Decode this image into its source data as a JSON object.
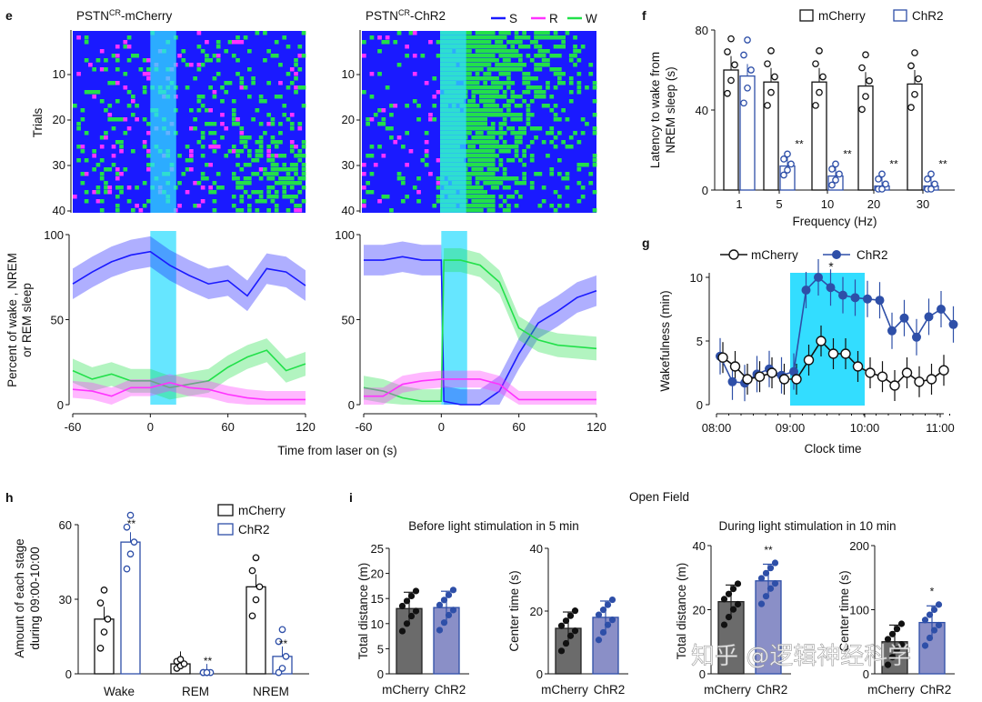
{
  "panels": {
    "e": "e",
    "f": "f",
    "g": "g",
    "h": "h",
    "i": "i"
  },
  "colors": {
    "S": "#1a1aff",
    "R": "#ff33ff",
    "W": "#22e04a",
    "laser": "#33ddff",
    "mCherry": "#111111",
    "ChR2": "#2e4fa8",
    "grayBar": "#6b6b6b",
    "blueBar": "#8a8fc7"
  },
  "e": {
    "left_title_base": "PSTN",
    "left_title_sup": "CR",
    "left_title_rest": "-mCherry",
    "right_title_base": "PSTN",
    "right_title_sup": "CR",
    "right_title_rest": "-ChR2",
    "legend": [
      "S",
      "R",
      "W"
    ],
    "trials_label": "Trials",
    "trial_ticks": [
      "10",
      "20",
      "30",
      "40"
    ],
    "pct_ticks": [
      "100",
      "50",
      "0"
    ],
    "ylabel1": "Percent of wake , NREM",
    "ylabel2": "or REM sleep",
    "x_ticks": [
      "-60",
      "0",
      "60",
      "120"
    ],
    "xlabel": "Time from laser on (s)",
    "laser_window": [
      0,
      20
    ]
  },
  "chart_data": [
    {
      "panel": "e-mCherry-percent",
      "type": "line",
      "x": [
        -60,
        -45,
        -30,
        -15,
        0,
        15,
        30,
        45,
        60,
        75,
        90,
        105,
        120
      ],
      "series": [
        {
          "name": "S",
          "values": [
            71,
            78,
            84,
            88,
            90,
            82,
            76,
            71,
            73,
            64,
            80,
            78,
            70
          ]
        },
        {
          "name": "W",
          "values": [
            20,
            15,
            18,
            14,
            14,
            10,
            12,
            14,
            22,
            28,
            32,
            20,
            24
          ]
        },
        {
          "name": "R",
          "values": [
            9,
            8,
            5,
            10,
            10,
            13,
            10,
            9,
            6,
            4,
            3,
            3,
            3
          ]
        }
      ],
      "ylim": [
        0,
        100
      ],
      "xlim": [
        -60,
        120
      ]
    },
    {
      "panel": "e-ChR2-percent",
      "type": "line",
      "x": [
        -60,
        -45,
        -30,
        -15,
        0,
        2,
        15,
        20,
        30,
        45,
        60,
        75,
        90,
        105,
        120
      ],
      "series": [
        {
          "name": "S",
          "values": [
            85,
            85,
            87,
            85,
            85,
            2,
            0,
            0,
            0,
            8,
            30,
            48,
            55,
            63,
            67
          ]
        },
        {
          "name": "W",
          "values": [
            10,
            8,
            4,
            2,
            2,
            85,
            85,
            84,
            82,
            72,
            45,
            38,
            35,
            34,
            33
          ]
        },
        {
          "name": "R",
          "values": [
            5,
            5,
            12,
            14,
            15,
            15,
            15,
            15,
            15,
            12,
            3,
            3,
            3,
            3,
            3
          ]
        }
      ],
      "ylim": [
        0,
        100
      ],
      "xlim": [
        -60,
        120
      ]
    },
    {
      "panel": "f",
      "type": "bar",
      "categories": [
        "1",
        "5",
        "10",
        "20",
        "30"
      ],
      "series": [
        {
          "name": "mCherry",
          "values": [
            60,
            54,
            54,
            52,
            53
          ]
        },
        {
          "name": "ChR2",
          "values": [
            57,
            12,
            7,
            2,
            2
          ]
        }
      ],
      "sig": [
        "",
        "**",
        "**",
        "**",
        "**"
      ],
      "ylim": [
        0,
        80
      ],
      "yticks": [
        "0",
        "40",
        "80"
      ],
      "xlabel": "Frequency (Hz)",
      "ylabel1": "Latency to wake from",
      "ylabel2": "NREM sleep (s)"
    },
    {
      "panel": "g",
      "type": "line",
      "x_ticks": [
        "08:00",
        "09:00",
        "10:00",
        "11:00"
      ],
      "series": [
        {
          "name": "mCherry",
          "values": [
            3.7,
            3.0,
            2.0,
            2.2,
            2.5,
            2.0,
            2.0,
            3.5,
            5.0,
            4.0,
            4.0,
            3.0,
            2.5,
            2.2,
            1.5,
            2.5,
            1.8,
            2.0,
            2.7
          ]
        },
        {
          "name": "ChR2",
          "values": [
            3.8,
            1.8,
            1.7,
            2.4,
            2.8,
            2.3,
            2.6,
            9.0,
            10.0,
            9.2,
            8.6,
            8.4,
            8.3,
            8.2,
            5.8,
            6.8,
            5.3,
            6.9,
            7.5,
            6.3
          ]
        }
      ],
      "ylim": [
        0,
        10
      ],
      "yticks": [
        "0",
        "5",
        "10"
      ],
      "xlabel": "Clock time",
      "ylabel": "Wakefulness (min)",
      "sig": "*"
    },
    {
      "panel": "h",
      "type": "bar",
      "categories": [
        "Wake",
        "REM",
        "NREM"
      ],
      "series": [
        {
          "name": "mCherry",
          "values": [
            22,
            4,
            35
          ]
        },
        {
          "name": "ChR2",
          "values": [
            53,
            0,
            7
          ]
        }
      ],
      "sig": [
        "**",
        "**",
        "**"
      ],
      "ylim": [
        0,
        60
      ],
      "yticks": [
        "0",
        "30",
        "60"
      ],
      "ylabel1": "Amount of each stage",
      "ylabel2": "during 09:00-10:00"
    },
    {
      "panel": "i1",
      "type": "bar",
      "categories": [
        "mCherry",
        "ChR2"
      ],
      "values": [
        13,
        13.2
      ],
      "ylim": [
        0,
        25
      ],
      "yticks": [
        "0",
        "5",
        "10",
        "15",
        "20",
        "25"
      ],
      "ylabel": "Total distance (m)",
      "sig": ""
    },
    {
      "panel": "i2",
      "type": "bar",
      "categories": [
        "mCherry",
        "ChR2"
      ],
      "values": [
        14.5,
        18
      ],
      "ylim": [
        0,
        40
      ],
      "yticks": [
        "0",
        "20",
        "40"
      ],
      "ylabel": "Center time (s)",
      "sig": ""
    },
    {
      "panel": "i3",
      "type": "bar",
      "categories": [
        "mCherry",
        "ChR2"
      ],
      "values": [
        22.5,
        29
      ],
      "ylim": [
        0,
        40
      ],
      "yticks": [
        "0",
        "20",
        "40"
      ],
      "ylabel": "Total distance (m)",
      "sig": "**"
    },
    {
      "panel": "i4",
      "type": "bar",
      "categories": [
        "mCherry",
        "ChR2"
      ],
      "values": [
        50,
        80
      ],
      "ylim": [
        0,
        200
      ],
      "yticks": [
        "0",
        "100",
        "200"
      ],
      "ylabel": "Center time (s)",
      "sig": "*"
    }
  ],
  "f": {
    "legend": [
      "mCherry",
      "ChR2"
    ]
  },
  "g": {
    "legend": [
      "mCherry",
      "ChR2"
    ]
  },
  "h": {
    "legend": [
      "mCherry",
      "ChR2"
    ]
  },
  "i": {
    "title": "Open Field",
    "before": "Before light stimulation in 5 min",
    "during": "During light stimulation in 10 min"
  },
  "watermark": "知乎 @逻辑神经科学"
}
